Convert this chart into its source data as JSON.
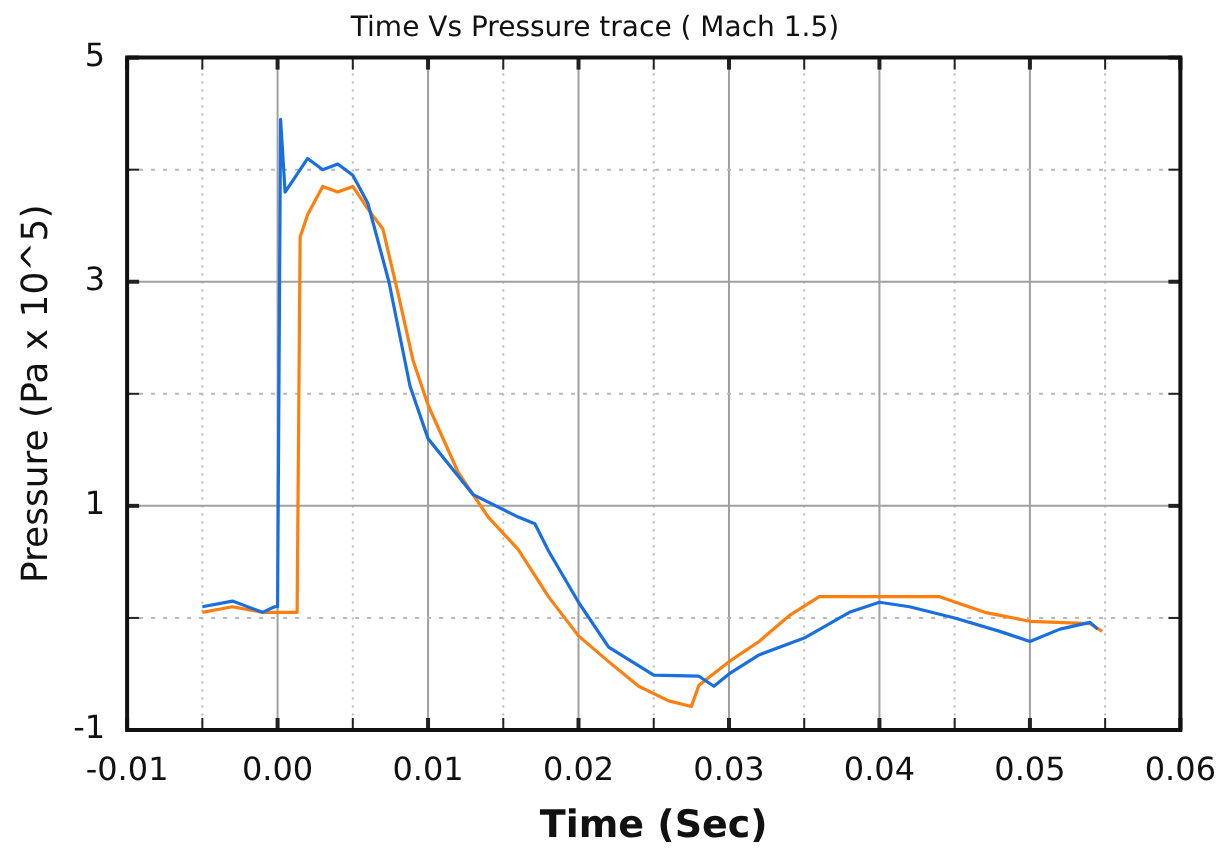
{
  "chart_data": {
    "type": "line",
    "title": "Time Vs Pressure trace ( Mach 1.5)",
    "xlabel": "Time (Sec)",
    "ylabel": "Pressure (Pa x 10^5)",
    "xlim": [
      -0.01,
      0.06
    ],
    "ylim": [
      -1,
      5
    ],
    "xticks": [
      -0.01,
      {
        "value": -0.005,
        "label": null
      },
      {
        "value": 0,
        "label": "0.00"
      },
      {
        "value": 0.005,
        "label": null
      },
      0.01,
      {
        "value": 0.015,
        "label": null
      },
      0.02,
      {
        "value": 0.025,
        "label": null
      },
      0.03,
      {
        "value": 0.035,
        "label": null
      },
      0.04,
      {
        "value": 0.045,
        "label": null
      },
      0.05,
      {
        "value": 0.055,
        "label": null
      },
      0.06
    ],
    "yticks": [
      -1,
      {
        "value": 0,
        "label": null
      },
      1,
      {
        "value": 2,
        "label": null
      },
      3,
      {
        "value": 4,
        "label": null
      },
      5
    ],
    "grid": true,
    "legend": false,
    "marker": "none",
    "line_style": "solid",
    "series": [
      {
        "color": "#1a6fe0",
        "x": [
          -0.005,
          -0.003,
          -0.001,
          -0.0002,
          0,
          0.0002,
          0.0005,
          0.001,
          0.002,
          0.003,
          0.004,
          0.005,
          0.006,
          0.0074,
          0.0088,
          0.01,
          0.013,
          0.016,
          0.0171,
          0.018,
          0.02,
          0.022,
          0.025,
          0.028,
          0.029,
          0.03,
          0.032,
          0.035,
          0.038,
          0.04,
          0.042,
          0.045,
          0.048,
          0.05,
          0.052,
          0.054,
          0.0545
        ],
        "values": [
          0.1,
          0.15,
          0.05,
          0.1,
          0.1,
          4.45,
          3.8,
          3.9,
          4.1,
          4.0,
          4.05,
          3.95,
          3.7,
          3.0,
          2.07,
          1.6,
          1.1,
          0.9,
          0.84,
          0.6,
          0.14,
          -0.26,
          -0.51,
          -0.52,
          -0.61,
          -0.5,
          -0.33,
          -0.18,
          0.05,
          0.14,
          0.1,
          0.0,
          -0.12,
          -0.21,
          -0.1,
          -0.04,
          -0.1
        ]
      },
      {
        "color": "#ff7f0e",
        "x": [
          -0.005,
          -0.003,
          -0.001,
          0.0013,
          0.0015,
          0.002,
          0.003,
          0.004,
          0.005,
          0.006,
          0.007,
          0.008,
          0.009,
          0.01,
          0.012,
          0.014,
          0.016,
          0.018,
          0.02,
          0.022,
          0.024,
          0.026,
          0.0275,
          0.028,
          0.03,
          0.032,
          0.034,
          0.036,
          0.04,
          0.044,
          0.047,
          0.05,
          0.054,
          0.0548
        ],
        "values": [
          0.05,
          0.1,
          0.05,
          0.05,
          3.4,
          3.6,
          3.85,
          3.8,
          3.85,
          3.65,
          3.47,
          2.9,
          2.3,
          1.9,
          1.3,
          0.9,
          0.61,
          0.19,
          -0.16,
          -0.39,
          -0.61,
          -0.74,
          -0.79,
          -0.6,
          -0.39,
          -0.21,
          0.02,
          0.19,
          0.19,
          0.19,
          0.05,
          -0.03,
          -0.05,
          -0.12
        ]
      }
    ]
  }
}
